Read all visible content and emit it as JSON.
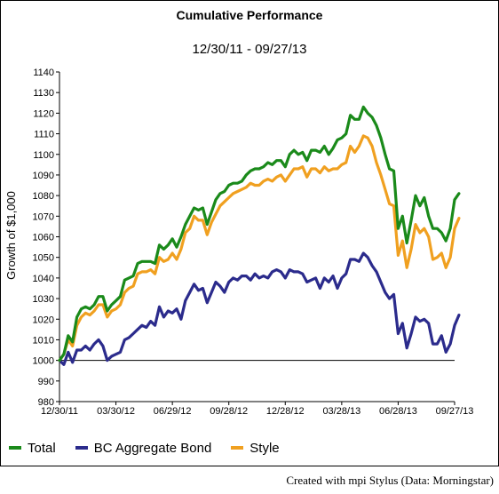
{
  "chart_data": {
    "type": "line",
    "title": "Cumulative Performance",
    "subtitle": "12/30/11 - 09/27/13",
    "ylabel": "Growth of $1,000",
    "xlabel": "",
    "ylim": [
      980,
      1140
    ],
    "yticks": [
      980,
      990,
      1000,
      1010,
      1020,
      1030,
      1040,
      1050,
      1060,
      1070,
      1080,
      1090,
      1100,
      1110,
      1120,
      1130,
      1140
    ],
    "xlim": [
      0,
      91
    ],
    "x_ticks": [
      {
        "x": 0,
        "label": "12/30/11"
      },
      {
        "x": 13,
        "label": "03/30/12"
      },
      {
        "x": 26,
        "label": "06/29/12"
      },
      {
        "x": 39,
        "label": "09/28/12"
      },
      {
        "x": 52,
        "label": "12/28/12"
      },
      {
        "x": 65,
        "label": "03/28/13"
      },
      {
        "x": 78,
        "label": "06/28/13"
      },
      {
        "x": 91,
        "label": "09/27/13"
      }
    ],
    "baseline": 1000,
    "grid": false,
    "legend_position": "bottom-left",
    "series": [
      {
        "name": "Total",
        "color": "#1a8a1a",
        "values": [
          1000,
          1003,
          1012,
          1009,
          1021,
          1025,
          1026,
          1025,
          1027,
          1031,
          1031,
          1024,
          1027,
          1029,
          1031,
          1039,
          1040,
          1041,
          1047,
          1048,
          1048,
          1048,
          1047,
          1056,
          1054,
          1056,
          1059,
          1055,
          1060,
          1066,
          1070,
          1074,
          1073,
          1074,
          1066,
          1072,
          1078,
          1081,
          1082,
          1085,
          1086,
          1086,
          1087,
          1090,
          1092,
          1093,
          1093,
          1094,
          1096,
          1095,
          1097,
          1097,
          1094,
          1100,
          1102,
          1100,
          1101,
          1097,
          1102,
          1102,
          1101,
          1104,
          1100,
          1103,
          1107,
          1108,
          1110,
          1119,
          1117,
          1117,
          1123,
          1120,
          1118,
          1114,
          1108,
          1100,
          1093,
          1092,
          1064,
          1070,
          1057,
          1068,
          1080,
          1075,
          1079,
          1070,
          1064,
          1064,
          1062,
          1058,
          1064,
          1078,
          1081
        ]
      },
      {
        "name": "BC Aggregate Bond",
        "color": "#2b2b8c",
        "values": [
          1000,
          998,
          1004,
          999,
          1005,
          1005,
          1007,
          1005,
          1008,
          1010,
          1007,
          1000,
          1002,
          1003,
          1004,
          1010,
          1011,
          1013,
          1015,
          1017,
          1016,
          1019,
          1017,
          1026,
          1021,
          1024,
          1023,
          1025,
          1020,
          1029,
          1033,
          1037,
          1034,
          1035,
          1028,
          1033,
          1038,
          1036,
          1033,
          1038,
          1040,
          1039,
          1041,
          1041,
          1039,
          1042,
          1040,
          1041,
          1040,
          1043,
          1044,
          1043,
          1040,
          1044,
          1043,
          1043,
          1042,
          1038,
          1039,
          1040,
          1035,
          1040,
          1038,
          1041,
          1035,
          1040,
          1042,
          1049,
          1049,
          1048,
          1052,
          1050,
          1046,
          1043,
          1038,
          1033,
          1030,
          1032,
          1013,
          1018,
          1006,
          1013,
          1021,
          1019,
          1020,
          1018,
          1008,
          1008,
          1012,
          1004,
          1008,
          1017,
          1022
        ]
      },
      {
        "name": "Style",
        "color": "#f0a020",
        "values": [
          1000,
          1003,
          1010,
          1007,
          1017,
          1021,
          1023,
          1022,
          1024,
          1027,
          1027,
          1021,
          1024,
          1025,
          1027,
          1033,
          1035,
          1036,
          1042,
          1043,
          1043,
          1044,
          1042,
          1050,
          1048,
          1049,
          1052,
          1049,
          1054,
          1062,
          1064,
          1070,
          1068,
          1068,
          1061,
          1067,
          1071,
          1075,
          1077,
          1079,
          1081,
          1082,
          1083,
          1084,
          1086,
          1085,
          1085,
          1087,
          1088,
          1087,
          1089,
          1090,
          1087,
          1090,
          1093,
          1093,
          1094,
          1089,
          1093,
          1093,
          1091,
          1094,
          1092,
          1093,
          1093,
          1095,
          1096,
          1104,
          1101,
          1104,
          1109,
          1108,
          1104,
          1096,
          1090,
          1083,
          1076,
          1075,
          1051,
          1058,
          1045,
          1054,
          1066,
          1062,
          1064,
          1060,
          1049,
          1050,
          1052,
          1045,
          1050,
          1064,
          1069
        ]
      }
    ]
  },
  "credit": "Created with mpi Stylus (Data: Morningstar)"
}
